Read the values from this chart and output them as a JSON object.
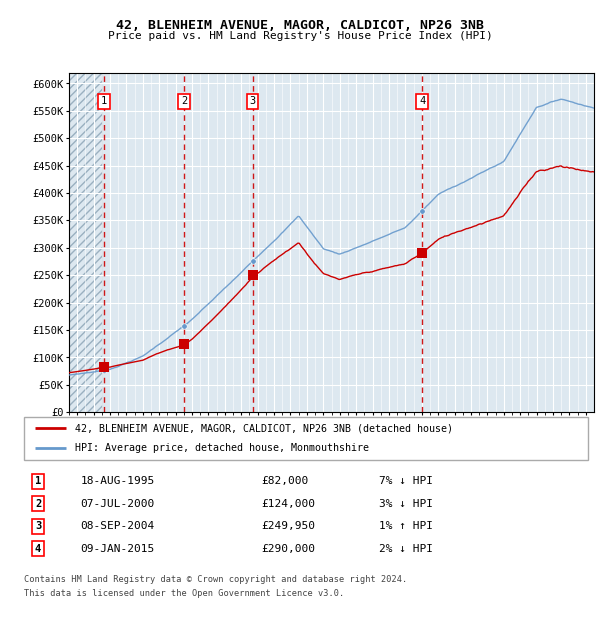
{
  "title1": "42, BLENHEIM AVENUE, MAGOR, CALDICOT, NP26 3NB",
  "title2": "Price paid vs. HM Land Registry's House Price Index (HPI)",
  "ylim": [
    0,
    620000
  ],
  "yticks": [
    0,
    50000,
    100000,
    150000,
    200000,
    250000,
    300000,
    350000,
    400000,
    450000,
    500000,
    550000,
    600000
  ],
  "ytick_labels": [
    "£0",
    "£50K",
    "£100K",
    "£150K",
    "£200K",
    "£250K",
    "£300K",
    "£350K",
    "£400K",
    "£450K",
    "£500K",
    "£550K",
    "£600K"
  ],
  "xlim_start": 1993.5,
  "xlim_end": 2025.5,
  "sale_dates": [
    1995.62,
    2000.52,
    2004.69,
    2015.03
  ],
  "sale_prices": [
    82000,
    124000,
    249950,
    290000
  ],
  "sale_labels": [
    "1",
    "2",
    "3",
    "4"
  ],
  "hpi_color": "#6699cc",
  "sale_color": "#cc0000",
  "dashed_color": "#cc0000",
  "bg_color": "#dde8f0",
  "hatch_color": "#aabbcc",
  "grid_color": "#ffffff",
  "legend_label1": "42, BLENHEIM AVENUE, MAGOR, CALDICOT, NP26 3NB (detached house)",
  "legend_label2": "HPI: Average price, detached house, Monmouthshire",
  "table_entries": [
    {
      "num": "1",
      "date": "18-AUG-1995",
      "price": "£82,000",
      "hpi": "7% ↓ HPI"
    },
    {
      "num": "2",
      "date": "07-JUL-2000",
      "price": "£124,000",
      "hpi": "3% ↓ HPI"
    },
    {
      "num": "3",
      "date": "08-SEP-2004",
      "price": "£249,950",
      "hpi": "1% ↑ HPI"
    },
    {
      "num": "4",
      "date": "09-JAN-2015",
      "price": "£290,000",
      "hpi": "2% ↓ HPI"
    }
  ],
  "footnote1": "Contains HM Land Registry data © Crown copyright and database right 2024.",
  "footnote2": "This data is licensed under the Open Government Licence v3.0.",
  "hatch_end": 1995.5
}
